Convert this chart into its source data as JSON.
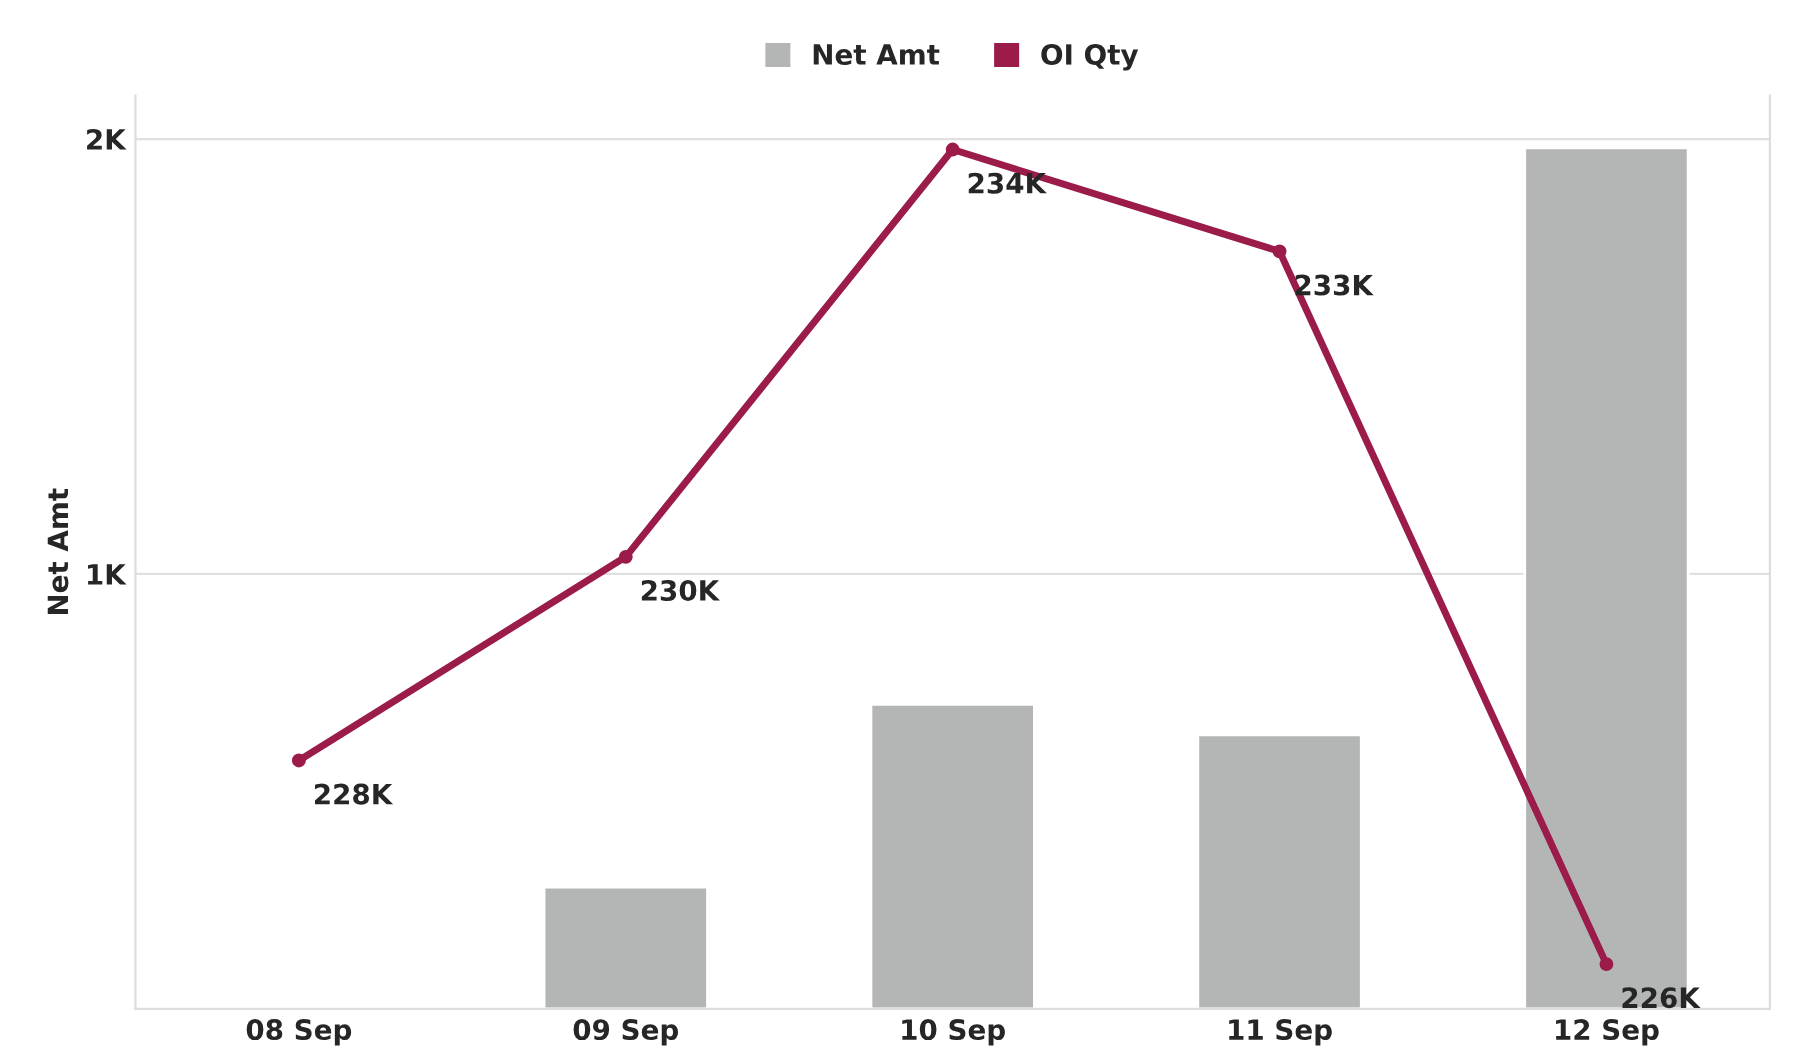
{
  "chart_data": {
    "type": "bar",
    "categories": [
      "08 Sep",
      "09 Sep",
      "10 Sep",
      "11 Sep",
      "12 Sep"
    ],
    "ylabel": "Net Amt",
    "series": [
      {
        "name": "Net Amt",
        "color": "#b4b6b6",
        "values": [
          null,
          280,
          700,
          630,
          1980
        ]
      },
      {
        "name": "OI Qty",
        "type": "line",
        "axis": "y2",
        "color": "#9b1b4b",
        "values": [
          228000,
          230000,
          234000,
          233000,
          226000
        ],
        "value_labels": [
          "228K",
          "230K",
          "234K",
          "233K",
          "226K"
        ]
      }
    ],
    "ylim": [
      0,
      2100
    ],
    "yticks": [
      {
        "value": 1000,
        "label": "1K"
      },
      {
        "value": 2000,
        "label": "2K"
      }
    ],
    "y2lim": [
      225560,
      234530
    ],
    "grid": "y",
    "legend": "top",
    "marker": "circle",
    "line_style": "solid"
  }
}
